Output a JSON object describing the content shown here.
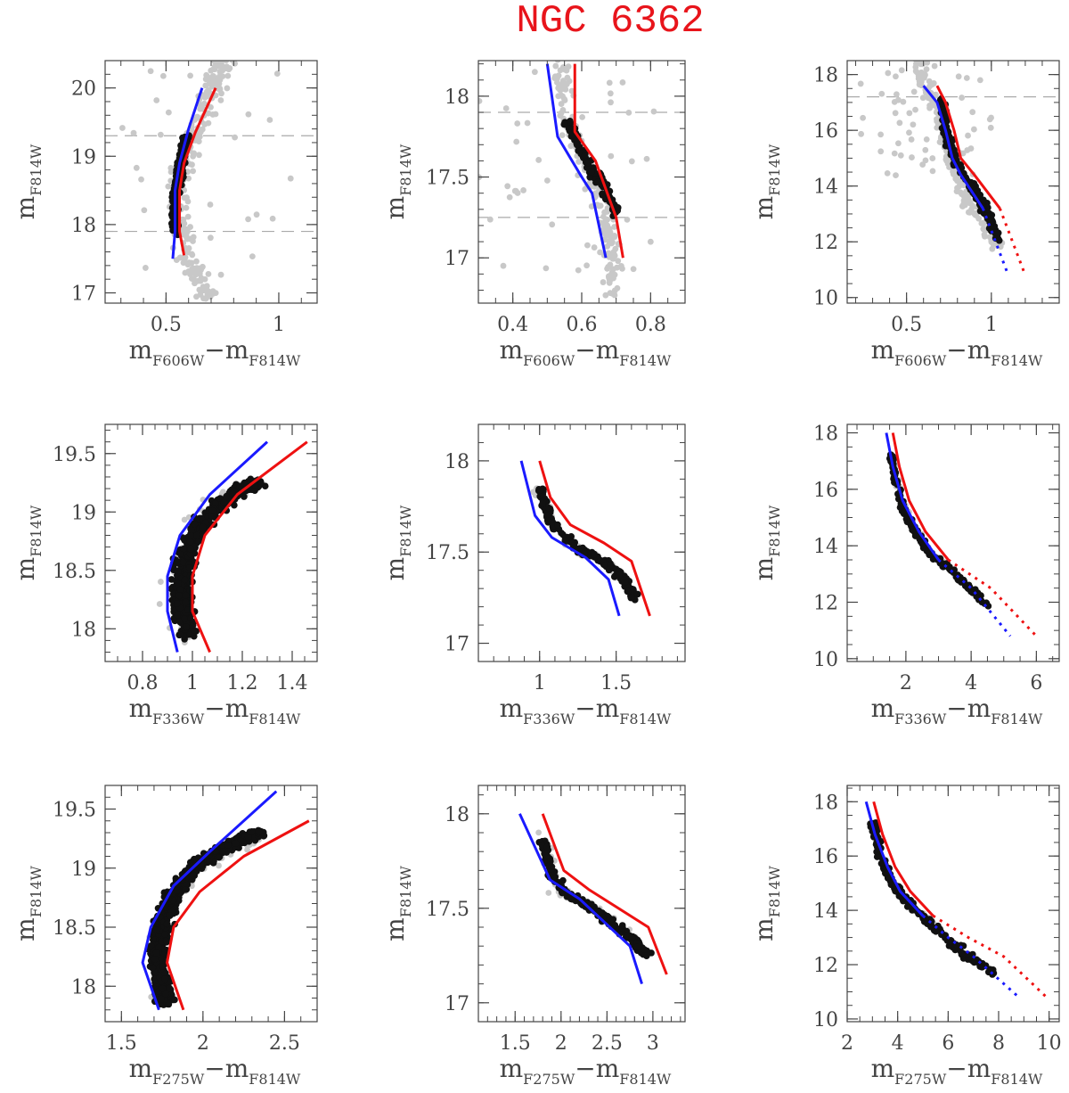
{
  "title": "NGC 6362",
  "colors": {
    "star_grey": "#c8c8c8",
    "star_black": "#111111",
    "iso_blue": "#1a1aff",
    "iso_red": "#ee1111",
    "dash": "#aaaaaa",
    "title": "#e8141b"
  },
  "chart_data": [
    {
      "type": "scatter",
      "xsub": "F606W",
      "ysub": "F814W",
      "xlabel": "mF606W−mF814W",
      "ylabel": "mF814W",
      "xlim": [
        0.23,
        1.17
      ],
      "ylim": [
        20.4,
        16.85
      ],
      "xticks": [
        0.5,
        1
      ],
      "xtick_labels": [
        "0.5",
        "1"
      ],
      "yticks": [
        17,
        18,
        19,
        20
      ],
      "ytick_labels": [
        "17",
        "18",
        "19",
        "20"
      ],
      "xminor": 0.1,
      "yminor": 0.2,
      "hlines": [
        17.9,
        19.3
      ],
      "grey_cloud": {
        "n": 260,
        "path": [
          [
            0.69,
            16.9
          ],
          [
            0.6,
            17.5
          ],
          [
            0.55,
            18.1
          ],
          [
            0.57,
            18.8
          ],
          [
            0.64,
            19.4
          ],
          [
            0.72,
            20.1
          ],
          [
            0.76,
            20.4
          ]
        ],
        "width": 0.05,
        "n_outliers": 30,
        "xrange": [
          0.3,
          1.1
        ],
        "yrange": [
          17.0,
          20.3
        ]
      },
      "black_band": {
        "n": 360,
        "path": [
          [
            0.54,
            17.9
          ],
          [
            0.54,
            18.4
          ],
          [
            0.56,
            18.8
          ],
          [
            0.59,
            19.3
          ]
        ],
        "width": 0.014
      },
      "blue_line": {
        "x": [
          0.53,
          0.54,
          0.54,
          0.56,
          0.6,
          0.66
        ],
        "y": [
          17.5,
          17.9,
          18.5,
          18.9,
          19.4,
          20.0
        ]
      },
      "red_line": {
        "x": [
          0.58,
          0.56,
          0.56,
          0.58,
          0.63,
          0.72
        ],
        "y": [
          17.55,
          17.9,
          18.5,
          18.9,
          19.35,
          20.0
        ]
      }
    },
    {
      "type": "scatter",
      "xsub": "F606W",
      "ysub": "F814W",
      "xlabel": "mF606W−mF814W",
      "ylabel": "mF814W",
      "xlim": [
        0.3,
        0.9
      ],
      "ylim": [
        18.22,
        16.72
      ],
      "xticks": [
        0.4,
        0.6,
        0.8
      ],
      "xtick_labels": [
        "0.4",
        "0.6",
        "0.8"
      ],
      "yticks": [
        17,
        17.5,
        18
      ],
      "ytick_labels": [
        "17",
        "17.5",
        "18"
      ],
      "xminor": 0.05,
      "yminor": 0.1,
      "hlines": [
        17.25,
        17.9
      ],
      "grey_cloud": {
        "n": 170,
        "path": [
          [
            0.69,
            16.75
          ],
          [
            0.69,
            17.1
          ],
          [
            0.66,
            17.35
          ],
          [
            0.59,
            17.65
          ],
          [
            0.55,
            17.9
          ],
          [
            0.54,
            18.22
          ]
        ],
        "width": 0.025,
        "n_outliers": 45,
        "xrange": [
          0.3,
          0.85
        ],
        "yrange": [
          16.85,
          18.15
        ]
      },
      "black_band": {
        "n": 130,
        "path": [
          [
            0.7,
            17.27
          ],
          [
            0.66,
            17.45
          ],
          [
            0.6,
            17.65
          ],
          [
            0.56,
            17.85
          ]
        ],
        "width": 0.014
      },
      "blue_line": {
        "x": [
          0.67,
          0.63,
          0.6,
          0.53,
          0.5
        ],
        "y": [
          17.0,
          17.4,
          17.5,
          17.75,
          18.2
        ]
      },
      "red_line": {
        "x": [
          0.72,
          0.7,
          0.64,
          0.58,
          0.58
        ],
        "y": [
          17.0,
          17.25,
          17.6,
          17.78,
          18.2
        ]
      }
    },
    {
      "type": "scatter",
      "xsub": "F606W",
      "ysub": "F814W",
      "xlabel": "mF606W−mF814W",
      "ylabel": "mF814W",
      "xlim": [
        0.15,
        1.4
      ],
      "ylim": [
        18.5,
        9.8
      ],
      "xticks": [
        0.5,
        1
      ],
      "xtick_labels": [
        "0.5",
        "1"
      ],
      "yticks": [
        10,
        12,
        14,
        16,
        18
      ],
      "ytick_labels": [
        "10",
        "12",
        "14",
        "16",
        "18"
      ],
      "xminor": 0.1,
      "yminor": 0.5,
      "hlines": [
        17.2
      ],
      "grey_cloud": {
        "n": 220,
        "path": [
          [
            1.05,
            11.7
          ],
          [
            0.85,
            13.5
          ],
          [
            0.76,
            15.0
          ],
          [
            0.7,
            16.5
          ],
          [
            0.62,
            17.5
          ],
          [
            0.57,
            18.5
          ]
        ],
        "width": 0.04,
        "n_outliers": 55,
        "xrange": [
          0.2,
          1.0
        ],
        "yrange": [
          14.3,
          18.4
        ]
      },
      "black_band": {
        "n": 220,
        "path": [
          [
            1.05,
            12.0
          ],
          [
            0.95,
            13.3
          ],
          [
            0.8,
            14.8
          ],
          [
            0.74,
            15.8
          ],
          [
            0.7,
            17.2
          ]
        ],
        "width": 0.02
      },
      "blue_line": {
        "x": [
          0.6,
          0.68,
          0.73,
          0.77,
          0.82,
          0.95,
          1.1
        ],
        "y": [
          17.6,
          17.0,
          16.0,
          15.0,
          14.4,
          13.2,
          10.8
        ],
        "dotted_above": 13.0
      },
      "red_line": {
        "x": [
          0.68,
          0.73,
          0.78,
          0.82,
          0.9,
          1.05,
          1.2
        ],
        "y": [
          17.6,
          17.0,
          16.0,
          15.0,
          14.4,
          13.2,
          10.8
        ],
        "dotted_above": 13.0
      }
    },
    {
      "type": "scatter",
      "xsub": "F336W",
      "ysub": "F814W",
      "xlabel": "mF336W−mF814W",
      "ylabel": "mF814W",
      "xlim": [
        0.65,
        1.5
      ],
      "ylim": [
        19.75,
        17.72
      ],
      "xticks": [
        0.8,
        1,
        1.2,
        1.4
      ],
      "xtick_labels": [
        "0.8",
        "1",
        "1.2",
        "1.4"
      ],
      "yticks": [
        18,
        18.5,
        19,
        19.5
      ],
      "ytick_labels": [
        "18",
        "18.5",
        "19",
        "19.5"
      ],
      "xminor": 0.05,
      "yminor": 0.1,
      "hlines": [],
      "grey_cloud": {
        "n": 40,
        "path": [
          [
            0.96,
            17.9
          ],
          [
            0.91,
            18.3
          ],
          [
            0.97,
            18.8
          ],
          [
            1.15,
            19.2
          ],
          [
            1.25,
            19.25
          ]
        ],
        "width": 0.05,
        "n_outliers": 0,
        "xrange": [
          0.9,
          1.3
        ],
        "yrange": [
          17.9,
          19.3
        ]
      },
      "black_band": {
        "n": 650,
        "path": [
          [
            0.98,
            17.92
          ],
          [
            0.96,
            18.2
          ],
          [
            0.96,
            18.5
          ],
          [
            1.0,
            18.8
          ],
          [
            1.1,
            19.05
          ],
          [
            1.2,
            19.2
          ],
          [
            1.25,
            19.25
          ]
        ],
        "width": 0.04
      },
      "blue_line": {
        "x": [
          0.94,
          0.9,
          0.9,
          0.95,
          1.07,
          1.3
        ],
        "y": [
          17.8,
          18.15,
          18.45,
          18.8,
          19.15,
          19.6
        ]
      },
      "red_line": {
        "x": [
          1.07,
          1.0,
          1.0,
          1.05,
          1.18,
          1.46
        ],
        "y": [
          17.8,
          18.15,
          18.45,
          18.8,
          19.15,
          19.6
        ]
      }
    },
    {
      "type": "scatter",
      "xsub": "F336W",
      "ysub": "F814W",
      "xlabel": "mF336W−mF814W",
      "ylabel": "mF814W",
      "xlim": [
        0.6,
        1.95
      ],
      "ylim": [
        18.2,
        16.9
      ],
      "xticks": [
        1,
        1.5
      ],
      "xtick_labels": [
        "1",
        "1.5"
      ],
      "yticks": [
        17,
        17.5,
        18
      ],
      "ytick_labels": [
        "17",
        "17.5",
        "18"
      ],
      "xminor": 0.1,
      "yminor": 0.1,
      "hlines": [],
      "grey_cloud": {
        "n": 25,
        "path": [
          [
            0.98,
            17.85
          ],
          [
            1.2,
            17.55
          ],
          [
            1.5,
            17.4
          ],
          [
            1.62,
            17.25
          ]
        ],
        "width": 0.05,
        "n_outliers": 0,
        "xrange": [
          0.9,
          1.7
        ],
        "yrange": [
          17.2,
          17.9
        ]
      },
      "black_band": {
        "n": 190,
        "path": [
          [
            1.0,
            17.85
          ],
          [
            1.08,
            17.65
          ],
          [
            1.25,
            17.52
          ],
          [
            1.45,
            17.43
          ],
          [
            1.55,
            17.35
          ],
          [
            1.63,
            17.25
          ]
        ],
        "width": 0.03
      },
      "blue_line": {
        "x": [
          0.88,
          0.97,
          1.08,
          1.3,
          1.45,
          1.52
        ],
        "y": [
          18.0,
          17.7,
          17.58,
          17.47,
          17.35,
          17.15
        ]
      },
      "red_line": {
        "x": [
          1.0,
          1.07,
          1.2,
          1.42,
          1.6,
          1.72
        ],
        "y": [
          18.0,
          17.8,
          17.65,
          17.55,
          17.45,
          17.15
        ]
      }
    },
    {
      "type": "scatter",
      "xsub": "F336W",
      "ysub": "F814W",
      "xlabel": "mF336W−mF814W",
      "ylabel": "mF814W",
      "xlim": [
        0.2,
        6.7
      ],
      "ylim": [
        18.3,
        9.9
      ],
      "xticks": [
        2,
        4,
        6
      ],
      "xtick_labels": [
        "2",
        "4",
        "6"
      ],
      "yticks": [
        10,
        12,
        14,
        16,
        18
      ],
      "ytick_labels": [
        "10",
        "12",
        "14",
        "16",
        "18"
      ],
      "xminor": 0.5,
      "yminor": 0.5,
      "hlines": [],
      "grey_cloud": {
        "n": 20,
        "path": [
          [
            1.6,
            17.3
          ],
          [
            1.9,
            15.5
          ],
          [
            2.6,
            14.0
          ],
          [
            3.3,
            13.2
          ]
        ],
        "width": 0.1,
        "n_outliers": 0,
        "xrange": [
          1.5,
          3.5
        ],
        "yrange": [
          13.0,
          17.3
        ]
      },
      "black_band": {
        "n": 200,
        "path": [
          [
            1.55,
            17.2
          ],
          [
            1.7,
            16.2
          ],
          [
            1.95,
            15.2
          ],
          [
            2.3,
            14.5
          ],
          [
            2.7,
            13.8
          ],
          [
            3.5,
            13.0
          ],
          [
            4.6,
            11.8
          ]
        ],
        "width": 0.07
      },
      "blue_line": {
        "x": [
          1.4,
          1.6,
          1.9,
          2.4,
          3.0,
          4.0,
          5.2
        ],
        "y": [
          18.0,
          16.8,
          15.6,
          14.5,
          13.5,
          12.5,
          10.8
        ],
        "dotted_above": 13.5
      },
      "red_line": {
        "x": [
          1.6,
          1.8,
          2.1,
          2.6,
          3.3,
          4.6,
          6.0
        ],
        "y": [
          18.0,
          16.8,
          15.6,
          14.5,
          13.5,
          12.5,
          10.8
        ],
        "dotted_above": 13.5
      }
    },
    {
      "type": "scatter",
      "xsub": "F275W",
      "ysub": "F814W",
      "xlabel": "mF275W−mF814W",
      "ylabel": "mF814W",
      "xlim": [
        1.4,
        2.7
      ],
      "ylim": [
        19.7,
        17.7
      ],
      "xticks": [
        1.5,
        2,
        2.5
      ],
      "xtick_labels": [
        "1.5",
        "2",
        "2.5"
      ],
      "yticks": [
        18,
        18.5,
        19,
        19.5
      ],
      "ytick_labels": [
        "18",
        "18.5",
        "19",
        "19.5"
      ],
      "xminor": 0.1,
      "yminor": 0.1,
      "hlines": [],
      "grey_cloud": {
        "n": 40,
        "path": [
          [
            1.75,
            17.9
          ],
          [
            1.7,
            18.4
          ],
          [
            1.85,
            18.8
          ],
          [
            2.1,
            19.1
          ],
          [
            2.3,
            19.25
          ]
        ],
        "width": 0.06,
        "n_outliers": 0,
        "xrange": [
          1.65,
          2.4
        ],
        "yrange": [
          17.9,
          19.3
        ]
      },
      "black_band": {
        "n": 900,
        "path": [
          [
            1.77,
            17.85
          ],
          [
            1.72,
            18.2
          ],
          [
            1.74,
            18.5
          ],
          [
            1.82,
            18.8
          ],
          [
            1.98,
            19.05
          ],
          [
            2.2,
            19.22
          ],
          [
            2.35,
            19.3
          ]
        ],
        "width": 0.05
      },
      "blue_line": {
        "x": [
          1.73,
          1.63,
          1.68,
          1.82,
          2.05,
          2.45
        ],
        "y": [
          17.8,
          18.2,
          18.5,
          18.85,
          19.15,
          19.65
        ]
      },
      "red_line": {
        "x": [
          1.88,
          1.78,
          1.82,
          1.98,
          2.25,
          2.65
        ],
        "y": [
          17.8,
          18.2,
          18.5,
          18.8,
          19.1,
          19.4
        ]
      }
    },
    {
      "type": "scatter",
      "xsub": "F275W",
      "ysub": "F814W",
      "xlabel": "mF275W−mF814W",
      "ylabel": "mF814W",
      "xlim": [
        1.1,
        3.35
      ],
      "ylim": [
        18.15,
        16.9
      ],
      "xticks": [
        1.5,
        2,
        2.5,
        3
      ],
      "xtick_labels": [
        "1.5",
        "2",
        "2.5",
        "3"
      ],
      "yticks": [
        17,
        17.5,
        18
      ],
      "ytick_labels": [
        "17",
        "17.5",
        "18"
      ],
      "xminor": 0.1,
      "yminor": 0.1,
      "hlines": [],
      "grey_cloud": {
        "n": 20,
        "path": [
          [
            1.8,
            17.9
          ],
          [
            1.95,
            17.6
          ],
          [
            2.4,
            17.5
          ],
          [
            2.9,
            17.3
          ]
        ],
        "width": 0.08,
        "n_outliers": 0,
        "xrange": [
          1.7,
          3.0
        ],
        "yrange": [
          17.2,
          17.95
        ]
      },
      "black_band": {
        "n": 200,
        "path": [
          [
            1.8,
            17.85
          ],
          [
            1.9,
            17.68
          ],
          [
            2.05,
            17.58
          ],
          [
            2.4,
            17.48
          ],
          [
            2.75,
            17.35
          ],
          [
            2.95,
            17.25
          ]
        ],
        "width": 0.05
      },
      "blue_line": {
        "x": [
          1.55,
          1.88,
          2.2,
          2.75,
          2.88
        ],
        "y": [
          18.0,
          17.65,
          17.55,
          17.3,
          17.1
        ]
      },
      "red_line": {
        "x": [
          1.8,
          2.03,
          2.3,
          2.95,
          3.15
        ],
        "y": [
          18.0,
          17.7,
          17.6,
          17.4,
          17.15
        ]
      }
    },
    {
      "type": "scatter",
      "xsub": "F275W",
      "ysub": "F814W",
      "xlabel": "mF275W−mF814W",
      "ylabel": "mF814W",
      "xlim": [
        2.0,
        10.4
      ],
      "ylim": [
        18.6,
        9.9
      ],
      "xticks": [
        2,
        4,
        6,
        8,
        10
      ],
      "xtick_labels": [
        "2",
        "4",
        "6",
        "8",
        "10"
      ],
      "yticks": [
        10,
        12,
        14,
        16,
        18
      ],
      "ytick_labels": [
        "10",
        "12",
        "14",
        "16",
        "18"
      ],
      "xminor": 0.5,
      "yminor": 0.5,
      "hlines": [],
      "grey_cloud": {
        "n": 20,
        "path": [
          [
            3.0,
            17.2
          ],
          [
            3.5,
            15.5
          ],
          [
            4.5,
            14.2
          ],
          [
            5.5,
            13.4
          ]
        ],
        "width": 0.12,
        "n_outliers": 0,
        "xrange": [
          2.9,
          5.5
        ],
        "yrange": [
          13.3,
          17.3
        ]
      },
      "black_band": {
        "n": 250,
        "path": [
          [
            3.0,
            17.3
          ],
          [
            3.3,
            16.0
          ],
          [
            3.8,
            15.0
          ],
          [
            4.4,
            14.3
          ],
          [
            5.2,
            13.6
          ],
          [
            6.5,
            12.5
          ],
          [
            7.8,
            11.7
          ]
        ],
        "width": 0.12
      },
      "blue_line": {
        "x": [
          2.75,
          3.1,
          3.6,
          4.1,
          5.0,
          6.0,
          7.0,
          8.8
        ],
        "y": [
          18.0,
          16.8,
          15.6,
          14.7,
          13.8,
          13.0,
          12.3,
          10.8
        ],
        "dotted_above": 13.8
      },
      "red_line": {
        "x": [
          3.05,
          3.4,
          3.9,
          4.5,
          5.4,
          6.8,
          8.2,
          9.9
        ],
        "y": [
          18.0,
          16.8,
          15.6,
          14.7,
          13.8,
          13.0,
          12.3,
          10.8
        ],
        "dotted_above": 13.8
      }
    }
  ]
}
